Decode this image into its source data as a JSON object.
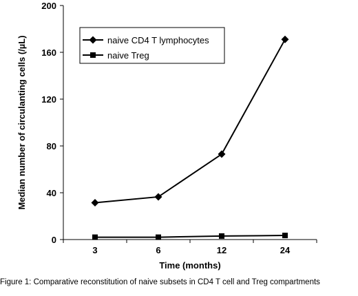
{
  "caption": "Figure 1: Comparative reconstitution of naive subsets in CD4 T cell and Treg compartments",
  "chart_data": {
    "type": "line",
    "categories": [
      "3",
      "6",
      "12",
      "24"
    ],
    "series": [
      {
        "name": "naive CD4 T lymphocytes",
        "values": [
          31.5,
          36.5,
          73,
          171
        ],
        "marker": "diamond"
      },
      {
        "name": "naive Treg",
        "values": [
          2,
          2,
          3,
          3.5
        ],
        "marker": "square"
      }
    ],
    "xlabel": "Time (months)",
    "ylabel": "Median number of circulanting cells (/µL)",
    "ylim": [
      0,
      200
    ],
    "yticks": [
      "0",
      "40",
      "80",
      "120",
      "160",
      "200"
    ],
    "grid": false,
    "legend_position": "top-left",
    "colors": {
      "line": "#000000"
    }
  }
}
